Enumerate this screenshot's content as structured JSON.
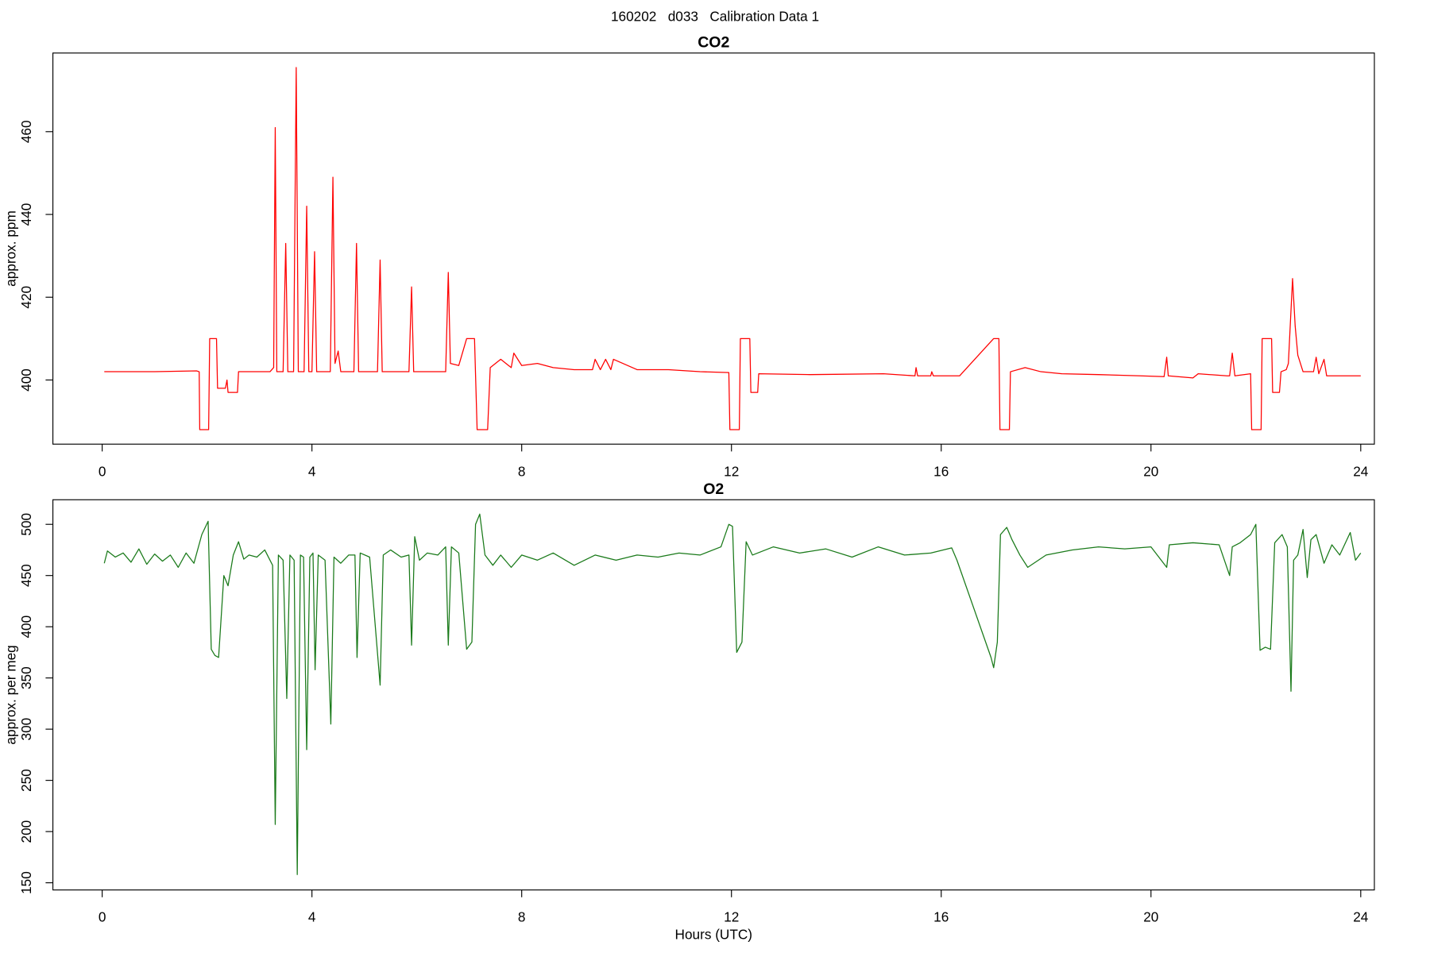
{
  "title": "160202   d033   Calibration Data 1",
  "chart_data": [
    {
      "type": "line",
      "title": "CO2",
      "ylabel": "approx. ppm",
      "xlim": [
        -0.94,
        24.26
      ],
      "xticks": [
        0,
        4,
        8,
        12,
        16,
        20,
        24
      ],
      "ylim": [
        384.5,
        479
      ],
      "yticks": [
        400,
        420,
        440,
        460
      ],
      "series": [
        {
          "color": "#ff0000",
          "x": [
            0.04,
            1.0,
            1.8,
            1.85,
            1.86,
            2.03,
            2.05,
            2.18,
            2.2,
            2.35,
            2.38,
            2.4,
            2.45,
            2.58,
            2.6,
            3.2,
            3.27,
            3.3,
            3.33,
            3.45,
            3.5,
            3.54,
            3.65,
            3.7,
            3.74,
            3.85,
            3.9,
            3.94,
            4.0,
            4.05,
            4.09,
            4.35,
            4.4,
            4.44,
            4.5,
            4.55,
            4.8,
            4.85,
            4.89,
            5.25,
            5.3,
            5.34,
            5.85,
            5.9,
            5.94,
            6.55,
            6.6,
            6.64,
            6.8,
            6.95,
            7.1,
            7.15,
            7.35,
            7.4,
            7.6,
            7.8,
            7.85,
            8.0,
            8.3,
            8.6,
            9.0,
            9.35,
            9.4,
            9.5,
            9.6,
            9.7,
            9.75,
            10.2,
            10.8,
            11.4,
            11.95,
            11.97,
            12.15,
            12.17,
            12.35,
            12.37,
            12.5,
            12.52,
            13.5,
            14.9,
            15.5,
            15.52,
            15.55,
            15.8,
            15.82,
            15.85,
            16.35,
            17.0,
            17.1,
            17.12,
            17.3,
            17.32,
            17.6,
            17.9,
            18.3,
            19.0,
            19.8,
            20.25,
            20.3,
            20.33,
            20.8,
            20.9,
            21.45,
            21.5,
            21.55,
            21.6,
            21.9,
            21.92,
            22.1,
            22.12,
            22.3,
            22.32,
            22.45,
            22.48,
            22.58,
            22.62,
            22.7,
            22.75,
            22.8,
            22.9,
            23.1,
            23.15,
            23.2,
            23.3,
            23.35,
            23.45,
            24.0
          ],
          "values": [
            402,
            402,
            402.2,
            402,
            388,
            388,
            410,
            410,
            398,
            398,
            400,
            397,
            397,
            397,
            402,
            402,
            403,
            461,
            402,
            402,
            433,
            402,
            402,
            475.5,
            402,
            402,
            442,
            402,
            402,
            431,
            402,
            402,
            449,
            404,
            407,
            402,
            402,
            433,
            402,
            402,
            429,
            402,
            402,
            422.5,
            402,
            402,
            426,
            404,
            403.5,
            410,
            410,
            388,
            388,
            403,
            405,
            403,
            406.5,
            403.5,
            404,
            403,
            402.5,
            402.5,
            405,
            402.5,
            405,
            402.5,
            405,
            402.5,
            402.5,
            402,
            401.8,
            388,
            388,
            410,
            410,
            397,
            397,
            401.5,
            401.3,
            401.5,
            401,
            403,
            401,
            401,
            402,
            401,
            401,
            410,
            410,
            388,
            388,
            402,
            403,
            402,
            401.5,
            401.3,
            401,
            400.8,
            405.5,
            401,
            400.5,
            401.5,
            401,
            401,
            406.5,
            401,
            401.5,
            388,
            388,
            410,
            410,
            397,
            397,
            402,
            402.5,
            404,
            424.5,
            413,
            406,
            402,
            402,
            405.5,
            401.5,
            405,
            401,
            401,
            401
          ]
        }
      ]
    },
    {
      "type": "line",
      "title": "O2",
      "ylabel": "approx. per meg",
      "xlabel": "Hours (UTC)",
      "xlim": [
        -0.94,
        24.26
      ],
      "xticks": [
        0,
        4,
        8,
        12,
        16,
        20,
        24
      ],
      "ylim": [
        143,
        524
      ],
      "yticks": [
        150,
        200,
        250,
        300,
        350,
        400,
        450,
        500
      ],
      "series": [
        {
          "color": "#1a7a1a",
          "x": [
            0.04,
            0.1,
            0.25,
            0.4,
            0.55,
            0.7,
            0.85,
            1.0,
            1.15,
            1.3,
            1.45,
            1.6,
            1.75,
            1.9,
            2.02,
            2.08,
            2.15,
            2.22,
            2.32,
            2.4,
            2.5,
            2.6,
            2.7,
            2.8,
            2.95,
            3.1,
            3.25,
            3.3,
            3.36,
            3.45,
            3.52,
            3.58,
            3.66,
            3.72,
            3.78,
            3.84,
            3.9,
            3.96,
            4.02,
            4.06,
            4.12,
            4.25,
            4.36,
            4.42,
            4.55,
            4.7,
            4.82,
            4.86,
            4.92,
            5.1,
            5.3,
            5.36,
            5.5,
            5.7,
            5.85,
            5.9,
            5.96,
            6.05,
            6.2,
            6.4,
            6.55,
            6.6,
            6.66,
            6.8,
            6.95,
            7.05,
            7.12,
            7.2,
            7.3,
            7.45,
            7.6,
            7.8,
            8.0,
            8.3,
            8.6,
            9.0,
            9.4,
            9.8,
            10.2,
            10.6,
            11.0,
            11.4,
            11.8,
            11.95,
            12.02,
            12.1,
            12.2,
            12.28,
            12.4,
            12.8,
            13.3,
            13.8,
            14.3,
            14.8,
            15.3,
            15.8,
            16.2,
            16.3,
            16.95,
            17.0,
            17.07,
            17.13,
            17.25,
            17.35,
            17.5,
            17.65,
            18.0,
            18.5,
            19.0,
            19.5,
            20.0,
            20.3,
            20.35,
            20.8,
            21.3,
            21.5,
            21.55,
            21.7,
            21.9,
            22.0,
            22.08,
            22.18,
            22.28,
            22.36,
            22.5,
            22.6,
            22.67,
            22.72,
            22.8,
            22.9,
            22.98,
            23.05,
            23.15,
            23.3,
            23.45,
            23.6,
            23.8,
            23.9,
            24.0
          ],
          "values": [
            462,
            474,
            468,
            472,
            463,
            476,
            461,
            471,
            464,
            470,
            458,
            472,
            462,
            490,
            503,
            378,
            372,
            370,
            450,
            440,
            470,
            483,
            466,
            470,
            468,
            475,
            460,
            207,
            470,
            465,
            330,
            470,
            465,
            158,
            470,
            468,
            280,
            468,
            472,
            358,
            470,
            465,
            305,
            468,
            462,
            470,
            470,
            370,
            472,
            468,
            343,
            470,
            475,
            468,
            470,
            382,
            488,
            465,
            472,
            470,
            478,
            382,
            478,
            472,
            378,
            385,
            500,
            510,
            470,
            460,
            470,
            458,
            470,
            465,
            472,
            460,
            470,
            465,
            470,
            468,
            472,
            470,
            478,
            500,
            498,
            375,
            385,
            483,
            470,
            478,
            472,
            476,
            468,
            478,
            470,
            472,
            477,
            465,
            370,
            360,
            385,
            490,
            497,
            485,
            470,
            458,
            470,
            475,
            478,
            476,
            478,
            458,
            480,
            482,
            480,
            450,
            478,
            482,
            490,
            500,
            377,
            380,
            378,
            482,
            490,
            478,
            337,
            465,
            470,
            495,
            448,
            485,
            490,
            462,
            480,
            470,
            492,
            465,
            472
          ]
        }
      ]
    }
  ]
}
